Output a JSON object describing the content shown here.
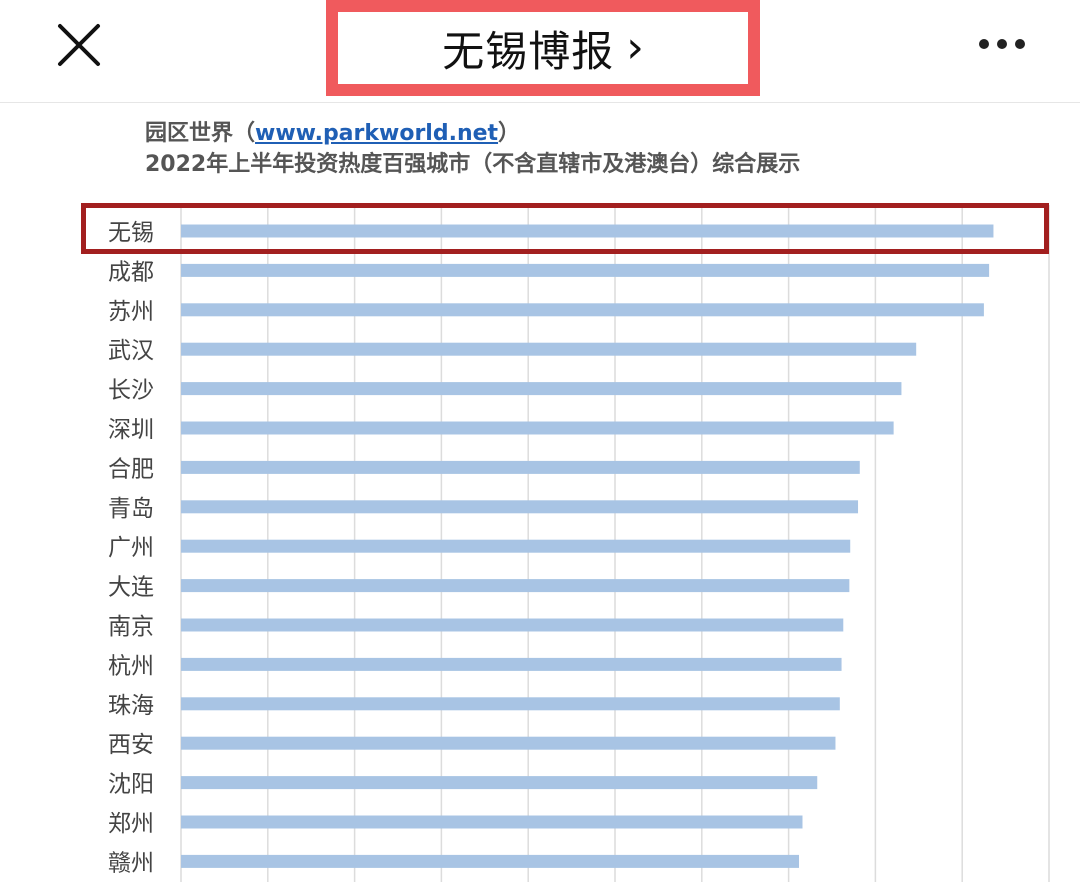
{
  "nav": {
    "title": "无锡博报",
    "chevron": "›",
    "close_icon": "close-icon",
    "more_icon": "more-horizontal-icon"
  },
  "chart_header": {
    "line1_prefix": "园区世界（",
    "url": "www.parkworld.net",
    "line1_suffix": "）",
    "line2": "2022年上半年投资热度百强城市（不含直辖市及港澳台）综合展示"
  },
  "colors": {
    "bar": "#a8c4e4",
    "grid": "#dcdcdc",
    "highlight_red": "#a21f1f",
    "title_box_red": "#f05a5d",
    "link_blue": "#1f5fb5"
  },
  "chart_data": {
    "type": "bar",
    "orientation": "horizontal",
    "categories": [
      "无锡",
      "成都",
      "苏州",
      "武汉",
      "长沙",
      "深圳",
      "合肥",
      "青岛",
      "广州",
      "大连",
      "南京",
      "杭州",
      "珠海",
      "西安",
      "沈阳",
      "郑州",
      "赣州"
    ],
    "values": [
      93.6,
      93.1,
      92.5,
      84.7,
      83.0,
      82.1,
      78.2,
      78.0,
      77.1,
      77.0,
      76.3,
      76.1,
      75.9,
      75.4,
      73.3,
      71.6,
      71.2
    ],
    "xlim": [
      0,
      100
    ],
    "grid": true,
    "highlighted_category": "无锡"
  }
}
